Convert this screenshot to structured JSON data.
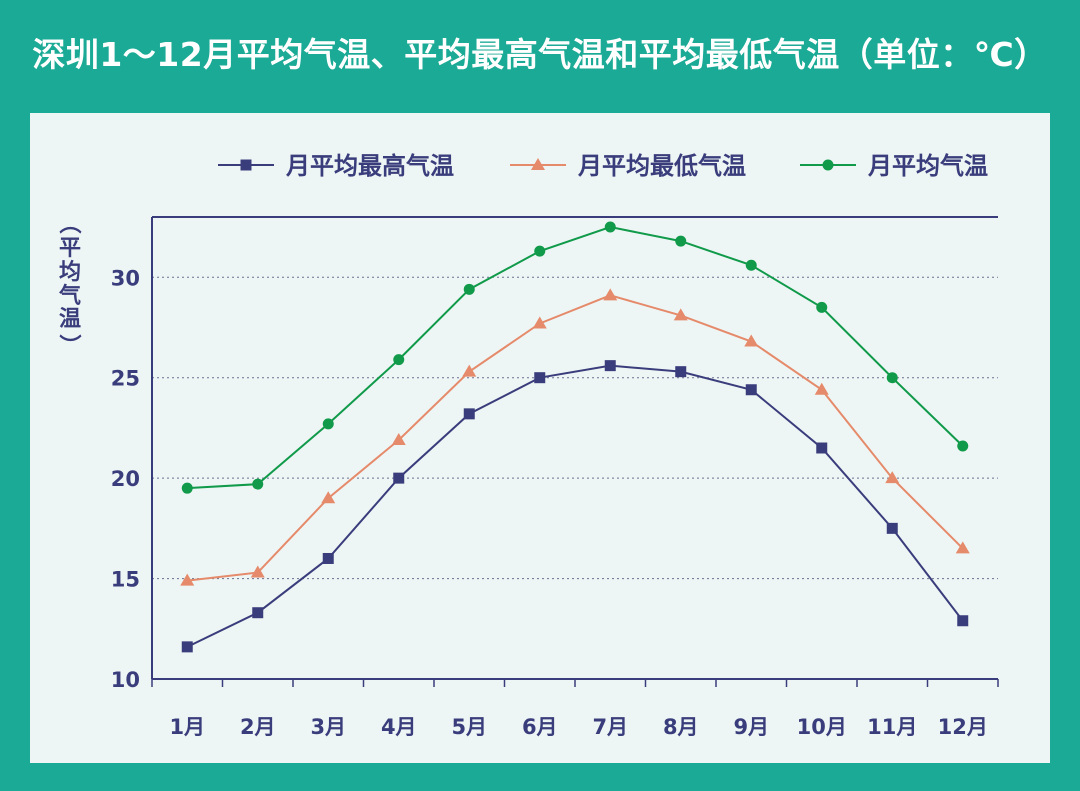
{
  "title": "深圳1～12月平均气温、平均最高气温和平均最低气温（单位：℃）",
  "chart_data": {
    "type": "line",
    "title": "深圳1～12月平均气温、平均最高气温和平均最低气温（单位：℃）",
    "xlabel": "",
    "ylabel": "（平均气温）",
    "ylabel_chars": [
      "（",
      "平",
      "均",
      "气",
      "温",
      "）"
    ],
    "categories": [
      "1月",
      "2月",
      "3月",
      "4月",
      "5月",
      "6月",
      "7月",
      "8月",
      "9月",
      "10月",
      "11月",
      "12月"
    ],
    "ylim": [
      10,
      33
    ],
    "yticks": [
      10,
      15,
      20,
      25,
      30
    ],
    "grid": "horizontal-dotted",
    "legend_position": "top",
    "series": [
      {
        "name": "月平均最高气温",
        "marker": "square",
        "color": "#3a3d7c",
        "values": [
          11.6,
          13.3,
          16.0,
          20.0,
          23.2,
          25.0,
          25.6,
          25.3,
          24.4,
          21.5,
          17.5,
          12.9
        ]
      },
      {
        "name": "月平均最低气温",
        "marker": "triangle",
        "color": "#e58a6a",
        "values": [
          14.9,
          15.3,
          19.0,
          21.9,
          25.3,
          27.7,
          29.1,
          28.1,
          26.8,
          24.4,
          20.0,
          16.5
        ]
      },
      {
        "name": "月平均气温",
        "marker": "circle",
        "color": "#109a4a",
        "values": [
          19.5,
          19.7,
          22.7,
          25.9,
          29.4,
          31.3,
          32.5,
          31.8,
          30.6,
          28.5,
          25.0,
          21.6
        ]
      }
    ]
  }
}
